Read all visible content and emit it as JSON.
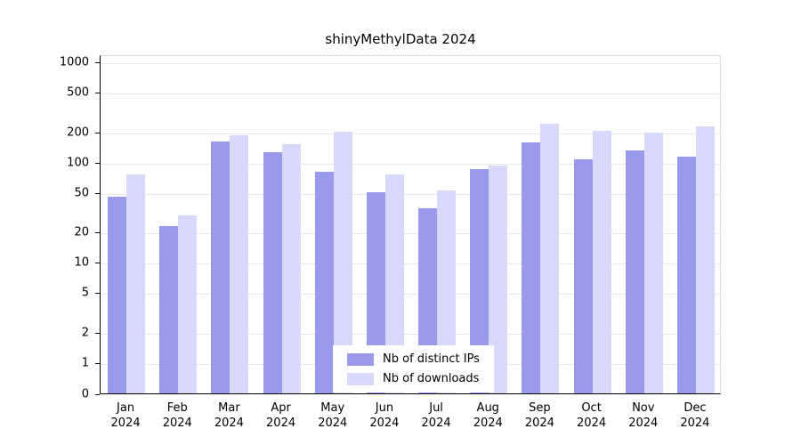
{
  "chart_data": {
    "type": "bar",
    "title": "shinyMethylData 2024",
    "categories": [
      "Jan",
      "Feb",
      "Mar",
      "Apr",
      "May",
      "Jun",
      "Jul",
      "Aug",
      "Sep",
      "Oct",
      "Nov",
      "Dec"
    ],
    "x_year": "2024",
    "series": [
      {
        "name": "Nb of distinct IPs",
        "color": "#9a9aed",
        "values": [
          45,
          23,
          160,
          125,
          80,
          50,
          34,
          84,
          155,
          105,
          130,
          112
        ]
      },
      {
        "name": "Nb of downloads",
        "color": "#d8d8f8",
        "values": [
          75,
          29,
          185,
          150,
          200,
          75,
          52,
          92,
          240,
          205,
          195,
          225
        ]
      }
    ],
    "y_ticks": [
      0,
      1,
      2,
      5,
      10,
      20,
      50,
      100,
      200,
      500,
      1000
    ],
    "y_scale": "log",
    "ylim": [
      0,
      1000
    ],
    "grid": true,
    "legend_position": "bottom-center-inside"
  }
}
